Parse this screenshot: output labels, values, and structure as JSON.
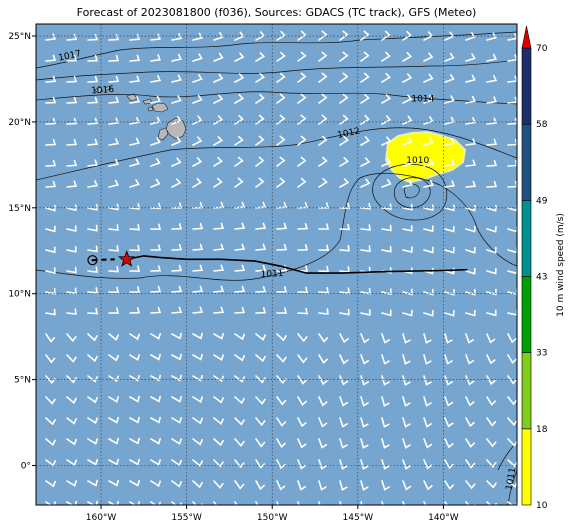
{
  "title": "Forecast of 2023081800 (f036), Sources: GDACS (TC track), GFS (Meteo)",
  "map": {
    "lon_range": [
      -163.8,
      -135.7
    ],
    "lat_range": [
      -2.3,
      25.7
    ],
    "lon_ticks": [
      {
        "value": -160,
        "label": "160°W"
      },
      {
        "value": -155,
        "label": "155°W"
      },
      {
        "value": -150,
        "label": "150°W"
      },
      {
        "value": -145,
        "label": "145°W"
      },
      {
        "value": -140,
        "label": "140°W"
      }
    ],
    "lat_ticks": [
      {
        "value": 0,
        "label": "0°"
      },
      {
        "value": 5,
        "label": "5°N"
      },
      {
        "value": 10,
        "label": "10°N"
      },
      {
        "value": 15,
        "label": "15°N"
      },
      {
        "value": 20,
        "label": "20°N"
      },
      {
        "value": 25,
        "label": "25°N"
      }
    ],
    "ocean_color": "#76a5cf",
    "grid": true,
    "pressure_labels": [
      {
        "text": "1017",
        "lon": -161.8,
        "lat": 23.7,
        "rot": -12
      },
      {
        "text": "1016",
        "lon": -159.9,
        "lat": 21.7,
        "rot": -4
      },
      {
        "text": "1014",
        "lon": -141.2,
        "lat": 21.2,
        "rot": 0
      },
      {
        "text": "1012",
        "lon": -145.5,
        "lat": 19.2,
        "rot": -12
      },
      {
        "text": "1010",
        "lon": -141.5,
        "lat": 17.6,
        "rot": 0
      },
      {
        "text": "1011",
        "lon": -150.0,
        "lat": 11.0,
        "rot": -3
      },
      {
        "text": "1011",
        "lon": -135.9,
        "lat": -0.8,
        "rot": -80
      }
    ],
    "tc_track": [
      [
        -158.5,
        12.0
      ],
      [
        -157.5,
        12.2
      ],
      [
        -156.5,
        12.1
      ],
      [
        -155.0,
        12.0
      ],
      [
        -153.0,
        12.0
      ],
      [
        -151.0,
        11.9
      ],
      [
        -149.5,
        11.6
      ],
      [
        -148.0,
        11.2
      ],
      [
        -146.0,
        11.2
      ],
      [
        -143.0,
        11.3
      ],
      [
        -140.0,
        11.35
      ],
      [
        -138.6,
        11.4
      ]
    ],
    "tc_past_track": [
      [
        -160.5,
        11.95
      ],
      [
        -159.2,
        12.0
      ]
    ],
    "tc_current_position": {
      "lon": -158.5,
      "lat": 12.0
    },
    "tc_origin_marker": {
      "lon": -160.5,
      "lat": 11.95
    }
  },
  "colorbar": {
    "label": "10 m wind speed (m/s)",
    "levels": [
      {
        "value": 10,
        "label": "10",
        "color": "#ffff00"
      },
      {
        "value": 18,
        "label": "18",
        "color": "#7fcc1a"
      },
      {
        "value": 33,
        "label": "33",
        "color": "#00a000"
      },
      {
        "value": 43,
        "label": "43",
        "color": "#009090"
      },
      {
        "value": 49,
        "label": "49",
        "color": "#1e5080"
      },
      {
        "value": 58,
        "label": "58",
        "color": "#1e2e6a"
      },
      {
        "value": 70,
        "label": "70",
        "color": "#e00000"
      }
    ]
  }
}
